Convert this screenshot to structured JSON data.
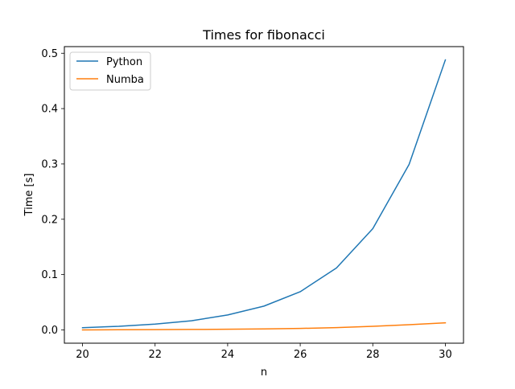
{
  "chart_data": {
    "type": "line",
    "title": "Times for fibonacci",
    "xlabel": "n",
    "ylabel": "Time [s]",
    "xlim": [
      19.5,
      30.5
    ],
    "ylim": [
      -0.024,
      0.512
    ],
    "xticks": [
      20,
      22,
      24,
      26,
      28,
      30
    ],
    "xtick_labels": [
      "20",
      "22",
      "24",
      "26",
      "28",
      "30"
    ],
    "yticks": [
      0.0,
      0.1,
      0.2,
      0.3,
      0.4,
      0.5
    ],
    "ytick_labels": [
      "0.0",
      "0.1",
      "0.2",
      "0.3",
      "0.4",
      "0.5"
    ],
    "grid": false,
    "legend_position": "top-left",
    "x": [
      20,
      21,
      22,
      23,
      24,
      25,
      26,
      27,
      28,
      29,
      30
    ],
    "series": [
      {
        "name": "Python",
        "color": "#1f77b4",
        "values": [
          0.004,
          0.0065,
          0.0105,
          0.0165,
          0.027,
          0.043,
          0.069,
          0.112,
          0.183,
          0.299,
          0.488
        ]
      },
      {
        "name": "Numba",
        "color": "#ff7f0e",
        "values": [
          0.0,
          0.0003,
          0.0005,
          0.0008,
          0.0012,
          0.0018,
          0.0027,
          0.0042,
          0.0065,
          0.0095,
          0.0128
        ]
      }
    ]
  }
}
